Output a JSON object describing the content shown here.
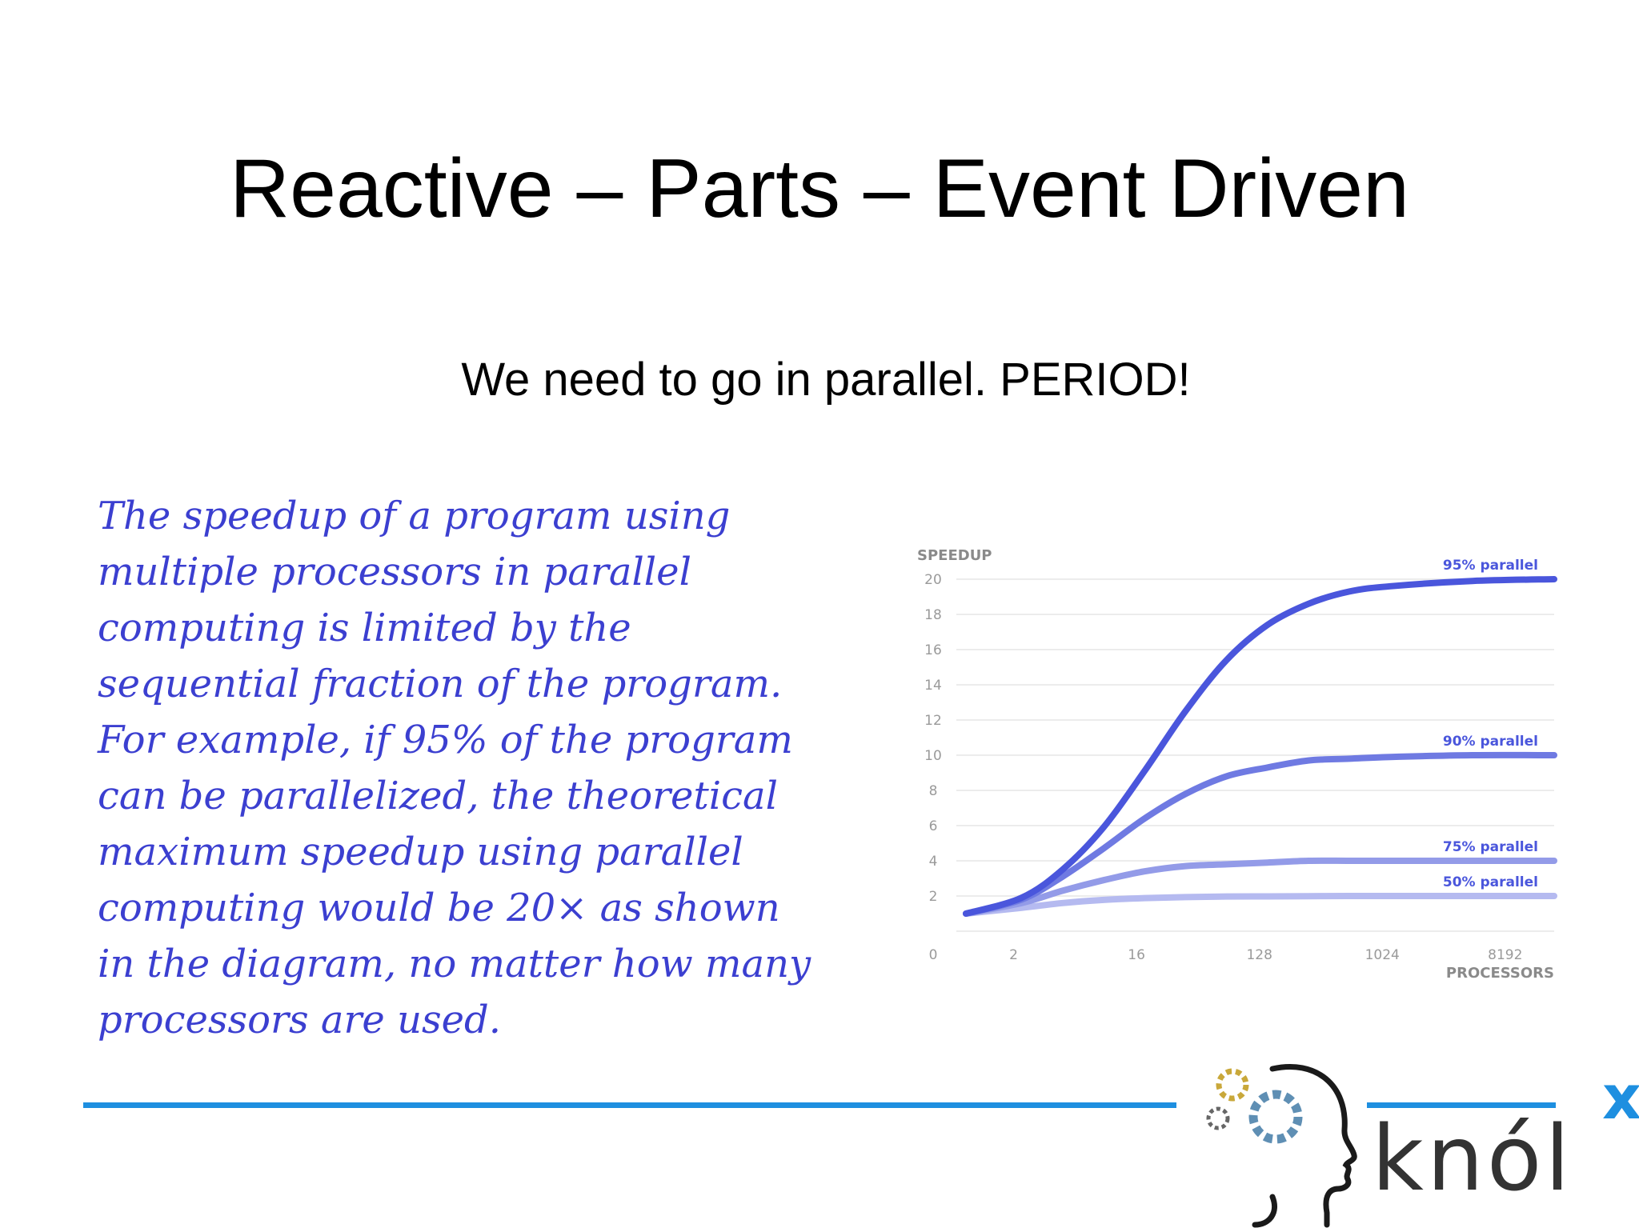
{
  "slide": {
    "title": "Reactive – Parts – Event Driven",
    "subtitle": "We need to go in parallel. PERIOD!",
    "quote_lines": [
      "The speedup of a program using",
      "multiple processors in parallel",
      "computing is limited by the",
      "sequential fraction of the program.",
      "For example, if 95% of the program",
      "can be parallelized, the theoretical",
      "maximum speedup using parallel",
      "computing would be 20× as shown",
      "in the diagram, no matter how many",
      "processors are used."
    ]
  },
  "chart_data": {
    "type": "line",
    "ylabel": "SPEEDUP",
    "xlabel": "PROCESSORS",
    "x_scale": "log2",
    "x_ticks": [
      "0",
      "2",
      "16",
      "128",
      "1024",
      "8192"
    ],
    "y_ticks": [
      "20",
      "18",
      "16",
      "14",
      "12",
      "10",
      "8",
      "6",
      "4",
      "2"
    ],
    "ylim": [
      0,
      20
    ],
    "grid": true,
    "series": [
      {
        "name": "95% parallel",
        "color": "#4a56dc",
        "parallel_fraction": 0.95,
        "x": [
          1,
          2,
          4,
          8,
          16,
          32,
          64,
          128,
          256,
          512,
          1024,
          4096,
          16384
        ],
        "y": [
          1,
          1.9,
          3.5,
          5.9,
          9.1,
          12.5,
          15.4,
          17.4,
          18.6,
          19.3,
          19.6,
          19.9,
          20
        ]
      },
      {
        "name": "90% parallel",
        "color": "#6f7ae2",
        "parallel_fraction": 0.9,
        "x": [
          1,
          2,
          4,
          8,
          16,
          32,
          64,
          128,
          256,
          512,
          1024,
          4096,
          16384
        ],
        "y": [
          1,
          1.8,
          3.1,
          4.7,
          6.4,
          7.8,
          8.8,
          9.3,
          9.7,
          9.8,
          9.9,
          10,
          10
        ]
      },
      {
        "name": "75% parallel",
        "color": "#939be8",
        "parallel_fraction": 0.75,
        "x": [
          1,
          2,
          4,
          8,
          16,
          32,
          64,
          128,
          256,
          512,
          1024,
          4096,
          16384
        ],
        "y": [
          1,
          1.6,
          2.3,
          2.9,
          3.4,
          3.7,
          3.8,
          3.9,
          4,
          4,
          4,
          4,
          4
        ]
      },
      {
        "name": "50% parallel",
        "color": "#b5baf0",
        "parallel_fraction": 0.5,
        "x": [
          1,
          2,
          4,
          8,
          16,
          32,
          64,
          128,
          256,
          512,
          1024,
          4096,
          16384
        ],
        "y": [
          1,
          1.33,
          1.6,
          1.78,
          1.88,
          1.94,
          1.97,
          1.98,
          1.99,
          2,
          2,
          2,
          2
        ]
      }
    ]
  },
  "footer": {
    "logo_text": "knól",
    "logo_superscript": "x"
  }
}
